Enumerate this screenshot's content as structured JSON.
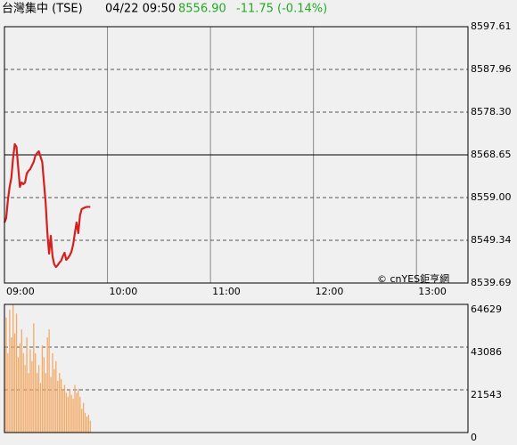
{
  "header": {
    "name": "台灣集中 (TSE)",
    "datetime": "04/22 09:50",
    "price": "8556.90",
    "change": "-11.75 (-0.14%)"
  },
  "chart_data": [
    {
      "type": "line",
      "watermark": "© cnYES鉅亨網",
      "x": [
        0,
        1,
        2,
        3,
        4,
        5,
        6,
        7,
        8,
        9,
        10,
        11,
        12,
        13,
        14,
        15,
        16,
        17,
        18,
        19,
        20,
        21,
        22,
        23,
        24,
        25,
        26,
        27,
        28,
        29,
        30,
        31,
        32,
        33,
        34,
        35,
        36,
        37,
        38,
        39,
        40,
        41,
        42,
        43,
        44,
        45,
        46,
        47,
        48,
        49,
        50
      ],
      "series": [
        {
          "color": "#d42020",
          "values": [
            8553.37,
            8554.37,
            8558.39,
            8561.41,
            8563.42,
            8567.85,
            8571.06,
            8570.46,
            8565.83,
            8561.41,
            8562.42,
            8562.01,
            8562.42,
            8564.43,
            8565.03,
            8565.43,
            8566.24,
            8567.04,
            8568.45,
            8569.05,
            8569.45,
            8568.25,
            8567.04,
            8562.42,
            8557.79,
            8550.95,
            8546.33,
            8550.35,
            8545.72,
            8543.92,
            8543.31,
            8543.71,
            8544.32,
            8544.72,
            8545.72,
            8546.53,
            8544.92,
            8545.32,
            8545.93,
            8546.73,
            8548.34,
            8550.95,
            8553.37,
            8550.95,
            8554.97,
            8556.38,
            8556.58,
            8556.78,
            8556.9,
            8556.9,
            8556.9
          ]
        }
      ],
      "xlim": [
        0,
        270
      ],
      "xticks": [
        {
          "value": 0,
          "label": "09:00"
        },
        {
          "value": 60,
          "label": "10:00"
        },
        {
          "value": 120,
          "label": "11:00"
        },
        {
          "value": 180,
          "label": "12:00"
        },
        {
          "value": 240,
          "label": "13:00"
        }
      ],
      "ylim": [
        8539.69,
        8597.61
      ],
      "yticks": [
        {
          "value": 8539.69,
          "label": "8539.69"
        },
        {
          "value": 8549.34,
          "label": "8549.34"
        },
        {
          "value": 8559.0,
          "label": "8559.00"
        },
        {
          "value": 8568.65,
          "label": "8568.65"
        },
        {
          "value": 8578.3,
          "label": "8578.30"
        },
        {
          "value": 8587.96,
          "label": "8587.96"
        },
        {
          "value": 8597.61,
          "label": "8597.61"
        }
      ],
      "reference_line": 8568.65,
      "grid": true
    },
    {
      "type": "bar",
      "x": [
        0,
        1,
        2,
        3,
        4,
        5,
        6,
        7,
        8,
        9,
        10,
        11,
        12,
        13,
        14,
        15,
        16,
        17,
        18,
        19,
        20,
        21,
        22,
        23,
        24,
        25,
        26,
        27,
        28,
        29,
        30,
        31,
        32,
        33,
        34,
        35,
        36,
        37,
        38,
        39,
        40,
        41,
        42,
        43,
        44,
        45,
        46,
        47,
        48,
        49,
        50
      ],
      "series": [
        {
          "color": "#f2aa66",
          "values": [
            42000,
            58000,
            40000,
            62000,
            48000,
            64629,
            50000,
            60000,
            38000,
            45000,
            52000,
            40000,
            34000,
            48000,
            30000,
            42000,
            36000,
            55000,
            40000,
            30000,
            34000,
            25000,
            44000,
            38000,
            30000,
            48000,
            52000,
            28000,
            40000,
            32000,
            36000,
            26000,
            30000,
            27000,
            22000,
            24000,
            20000,
            18000,
            22000,
            19000,
            17000,
            24000,
            20000,
            22000,
            18000,
            12000,
            15000,
            10000,
            8000,
            9000,
            6000
          ]
        }
      ],
      "xlim": [
        0,
        270
      ],
      "ylim": [
        0,
        64629
      ],
      "yticks": [
        0,
        21543,
        43086,
        64629
      ],
      "grid": true
    }
  ]
}
